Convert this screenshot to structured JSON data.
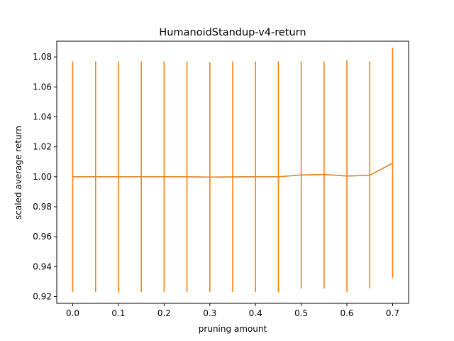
{
  "chart_data": {
    "type": "line",
    "title": "HumanoidStandup-v4-return",
    "xlabel": "pruning amount",
    "ylabel": "scaled average return",
    "xlim": [
      -0.035,
      0.735
    ],
    "ylim": [
      0.9155,
      1.0905
    ],
    "xticks": [
      0.0,
      0.1,
      0.2,
      0.3,
      0.4,
      0.5,
      0.6,
      0.7
    ],
    "xtick_labels": [
      "0.0",
      "0.1",
      "0.2",
      "0.3",
      "0.4",
      "0.5",
      "0.6",
      "0.7"
    ],
    "yticks": [
      0.92,
      0.94,
      0.96,
      0.98,
      1.0,
      1.02,
      1.04,
      1.06,
      1.08
    ],
    "ytick_labels": [
      "0.92",
      "0.94",
      "0.96",
      "0.98",
      "1.00",
      "1.02",
      "1.04",
      "1.06",
      "1.08"
    ],
    "grid": false,
    "colors": {
      "line": "#ff7f0e",
      "mean_line": "#5f9f9f",
      "axes": "#000000"
    },
    "series": [
      {
        "x": [
          0.0,
          0.05,
          0.1,
          0.15,
          0.2,
          0.25,
          0.3,
          0.35,
          0.4,
          0.45,
          0.5,
          0.55,
          0.6,
          0.65,
          0.7
        ],
        "y": [
          1.0,
          1.0,
          1.0,
          1.0,
          1.0,
          1.0,
          0.9998,
          0.9999,
          1.0,
          1.0,
          1.0012,
          1.0015,
          1.0005,
          1.001,
          1.009
        ],
        "err_low": [
          0.923,
          0.923,
          0.923,
          0.923,
          0.923,
          0.923,
          0.923,
          0.923,
          0.923,
          0.923,
          0.9255,
          0.9255,
          0.923,
          0.9255,
          0.9325
        ],
        "err_high": [
          1.077,
          1.077,
          1.077,
          1.077,
          1.077,
          1.077,
          1.0765,
          1.077,
          1.077,
          1.077,
          1.077,
          1.077,
          1.078,
          1.077,
          1.086
        ]
      }
    ]
  }
}
